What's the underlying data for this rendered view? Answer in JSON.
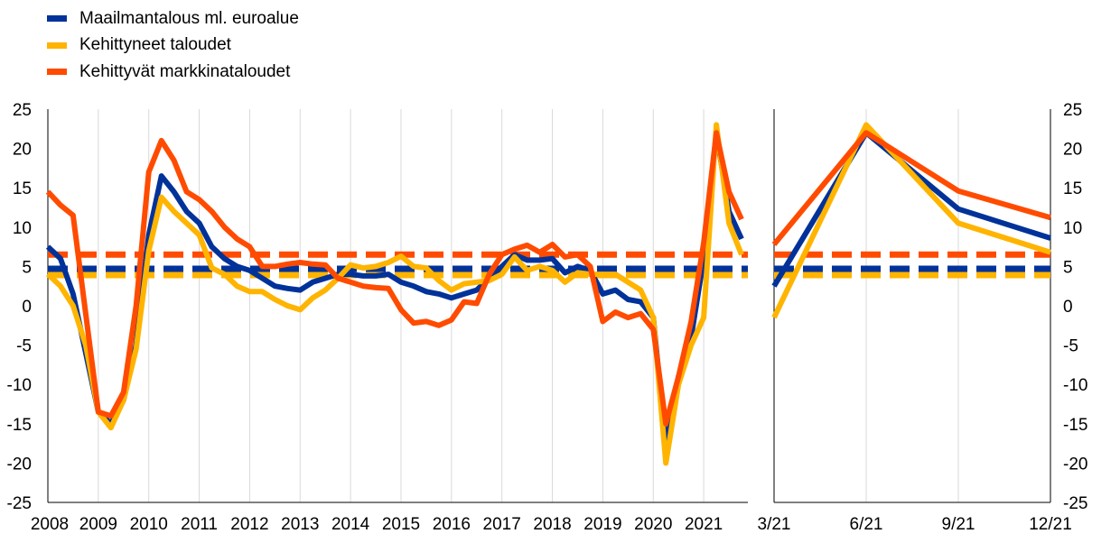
{
  "legend": {
    "items": [
      {
        "label": "Maailmantalous ml. euroalue",
        "color": "#003299"
      },
      {
        "label": "Kehittyneet taloudet",
        "color": "#FFB400"
      },
      {
        "label": "Kehittyvät markkinataloudet",
        "color": "#FF4B00"
      }
    ]
  },
  "chart_data": [
    {
      "type": "line",
      "ylim": [
        -25,
        25
      ],
      "yticks": [
        -25,
        -20,
        -15,
        -10,
        -5,
        0,
        5,
        10,
        15,
        20,
        25
      ],
      "xrange": [
        2008.0,
        2021.875
      ],
      "xticks": [
        2008,
        2009,
        2010,
        2011,
        2012,
        2013,
        2014,
        2015,
        2016,
        2017,
        2018,
        2019,
        2020,
        2021
      ],
      "xtick_labels": [
        "2008",
        "2009",
        "2010",
        "2011",
        "2012",
        "2013",
        "2014",
        "2015",
        "2016",
        "2017",
        "2018",
        "2019",
        "2020",
        "2021"
      ],
      "grid": "vertical",
      "series": [
        {
          "name": "Maailmantalous ml. euroalue",
          "color": "#003299",
          "x": [
            2008.0,
            2008.25,
            2008.5,
            2008.75,
            2009.0,
            2009.25,
            2009.5,
            2009.75,
            2010.0,
            2010.25,
            2010.5,
            2010.75,
            2011.0,
            2011.25,
            2011.5,
            2011.75,
            2012.0,
            2012.25,
            2012.5,
            2012.75,
            2013.0,
            2013.25,
            2013.5,
            2013.75,
            2014.0,
            2014.25,
            2014.5,
            2014.75,
            2015.0,
            2015.25,
            2015.5,
            2015.75,
            2016.0,
            2016.25,
            2016.5,
            2016.75,
            2017.0,
            2017.25,
            2017.5,
            2017.75,
            2018.0,
            2018.25,
            2018.5,
            2018.75,
            2019.0,
            2019.25,
            2019.5,
            2019.75,
            2020.0,
            2020.25,
            2020.5,
            2020.75,
            2021.0,
            2021.25,
            2021.5,
            2021.75
          ],
          "values": [
            7.5,
            6,
            1.5,
            -6,
            -13.5,
            -15,
            -12,
            -5,
            9,
            16.5,
            14.5,
            12,
            10.5,
            7.5,
            6,
            5,
            4.5,
            3.5,
            2.5,
            2.2,
            2,
            3,
            3.5,
            4,
            4,
            3.8,
            3.8,
            4,
            3,
            2.5,
            1.8,
            1.5,
            1,
            1.5,
            2,
            3.5,
            5,
            6.5,
            5.8,
            5.8,
            6,
            4.2,
            5,
            4.5,
            1.5,
            2,
            0.8,
            0.5,
            -1.5,
            -18,
            -9,
            -4,
            6,
            22,
            12,
            8.5
          ]
        },
        {
          "name": "Kehittyneet taloudet",
          "color": "#FFB400",
          "x": [
            2008.0,
            2008.25,
            2008.5,
            2008.75,
            2009.0,
            2009.25,
            2009.5,
            2009.75,
            2010.0,
            2010.25,
            2010.5,
            2010.75,
            2011.0,
            2011.25,
            2011.5,
            2011.75,
            2012.0,
            2012.25,
            2012.5,
            2012.75,
            2013.0,
            2013.25,
            2013.5,
            2013.75,
            2014.0,
            2014.25,
            2014.5,
            2014.75,
            2015.0,
            2015.25,
            2015.5,
            2015.75,
            2016.0,
            2016.25,
            2016.5,
            2016.75,
            2017.0,
            2017.25,
            2017.5,
            2017.75,
            2018.0,
            2018.25,
            2018.5,
            2018.75,
            2019.0,
            2019.25,
            2019.5,
            2019.75,
            2020.0,
            2020.25,
            2020.5,
            2020.75,
            2021.0,
            2021.25,
            2021.5,
            2021.75
          ],
          "values": [
            4,
            2.5,
            0,
            -5,
            -13.5,
            -15.5,
            -12,
            -5.5,
            7,
            13.8,
            12,
            10.5,
            9,
            4.8,
            4,
            2.5,
            1.8,
            1.8,
            0.8,
            0,
            -0.5,
            1,
            2,
            3.5,
            5.2,
            4.8,
            5,
            5.5,
            6.3,
            5,
            4.8,
            3.2,
            2,
            2.8,
            3,
            3.2,
            4,
            6.2,
            4.5,
            5,
            4.5,
            3,
            4.2,
            4,
            4,
            4,
            3,
            2,
            -1.5,
            -20,
            -10,
            -5,
            -1.5,
            23,
            10.5,
            6.5
          ]
        },
        {
          "name": "Kehittyvät markkinataloudet",
          "color": "#FF4B00",
          "x": [
            2008.0,
            2008.25,
            2008.5,
            2008.75,
            2009.0,
            2009.25,
            2009.5,
            2009.75,
            2010.0,
            2010.25,
            2010.5,
            2010.75,
            2011.0,
            2011.25,
            2011.5,
            2011.75,
            2012.0,
            2012.25,
            2012.5,
            2012.75,
            2013.0,
            2013.25,
            2013.5,
            2013.75,
            2014.0,
            2014.25,
            2014.5,
            2014.75,
            2015.0,
            2015.25,
            2015.5,
            2015.75,
            2016.0,
            2016.25,
            2016.5,
            2016.75,
            2017.0,
            2017.25,
            2017.5,
            2017.75,
            2018.0,
            2018.25,
            2018.5,
            2018.75,
            2019.0,
            2019.25,
            2019.5,
            2019.75,
            2020.0,
            2020.25,
            2020.5,
            2020.75,
            2021.0,
            2021.25,
            2021.5,
            2021.75
          ],
          "values": [
            14.5,
            12.8,
            11.5,
            -1,
            -13.5,
            -14,
            -11,
            0,
            17,
            21,
            18.5,
            14.5,
            13.5,
            12,
            10,
            8.5,
            7.5,
            5,
            5,
            5.3,
            5.5,
            5.3,
            5.2,
            3.5,
            3,
            2.5,
            2.3,
            2.2,
            -0.5,
            -2.2,
            -2,
            -2.5,
            -1.8,
            0.5,
            0.3,
            4,
            6.5,
            7.2,
            7.7,
            6.8,
            7.8,
            6.2,
            6.5,
            5,
            -2,
            -0.8,
            -1.5,
            -1,
            -3,
            -15,
            -9,
            -2,
            8,
            22,
            14.5,
            11
          ]
        },
        {
          "name": "Maailmantalous ml. euroalue",
          "color": "#003299",
          "style": "dashed",
          "x": [
            2008.0,
            2021.875
          ],
          "values": [
            4.7,
            4.7
          ]
        },
        {
          "name": "Kehittyneet taloudet",
          "color": "#FFB400",
          "style": "dashed",
          "x": [
            2008.0,
            2021.875
          ],
          "values": [
            3.9,
            3.9
          ]
        },
        {
          "name": "Kehittyvät markkinataloudet",
          "color": "#FF4B00",
          "style": "dashed",
          "x": [
            2008.0,
            2021.875
          ],
          "values": [
            6.5,
            6.5
          ]
        }
      ]
    },
    {
      "type": "line",
      "ylim": [
        -25,
        25
      ],
      "yticks": [
        -25,
        -20,
        -15,
        -10,
        -5,
        0,
        5,
        10,
        15,
        20,
        25
      ],
      "categories": [
        "3/21",
        "6/21",
        "9/21",
        "12/21"
      ],
      "grid": "vertical",
      "series": [
        {
          "name": "Maailmantalous ml. euroalue",
          "color": "#003299",
          "values": [
            2.5,
            22,
            12.3,
            8.6
          ]
        },
        {
          "name": "Kehittyneet taloudet",
          "color": "#FFB400",
          "values": [
            -1.5,
            23,
            10.5,
            6.8
          ]
        },
        {
          "name": "Kehittyvät markkinataloudet",
          "color": "#FF4B00",
          "values": [
            7.8,
            22,
            14.6,
            11.2
          ]
        },
        {
          "name": "Maailmantalous ml. euroalue",
          "color": "#003299",
          "style": "dashed",
          "values": [
            4.7,
            4.7,
            4.7,
            4.7
          ]
        },
        {
          "name": "Kehittyneet taloudet",
          "color": "#FFB400",
          "style": "dashed",
          "values": [
            3.9,
            3.9,
            3.9,
            3.9
          ]
        },
        {
          "name": "Kehittyvät markkinataloudet",
          "color": "#FF4B00",
          "style": "dashed",
          "values": [
            6.5,
            6.5,
            6.5,
            6.5
          ]
        }
      ]
    }
  ]
}
